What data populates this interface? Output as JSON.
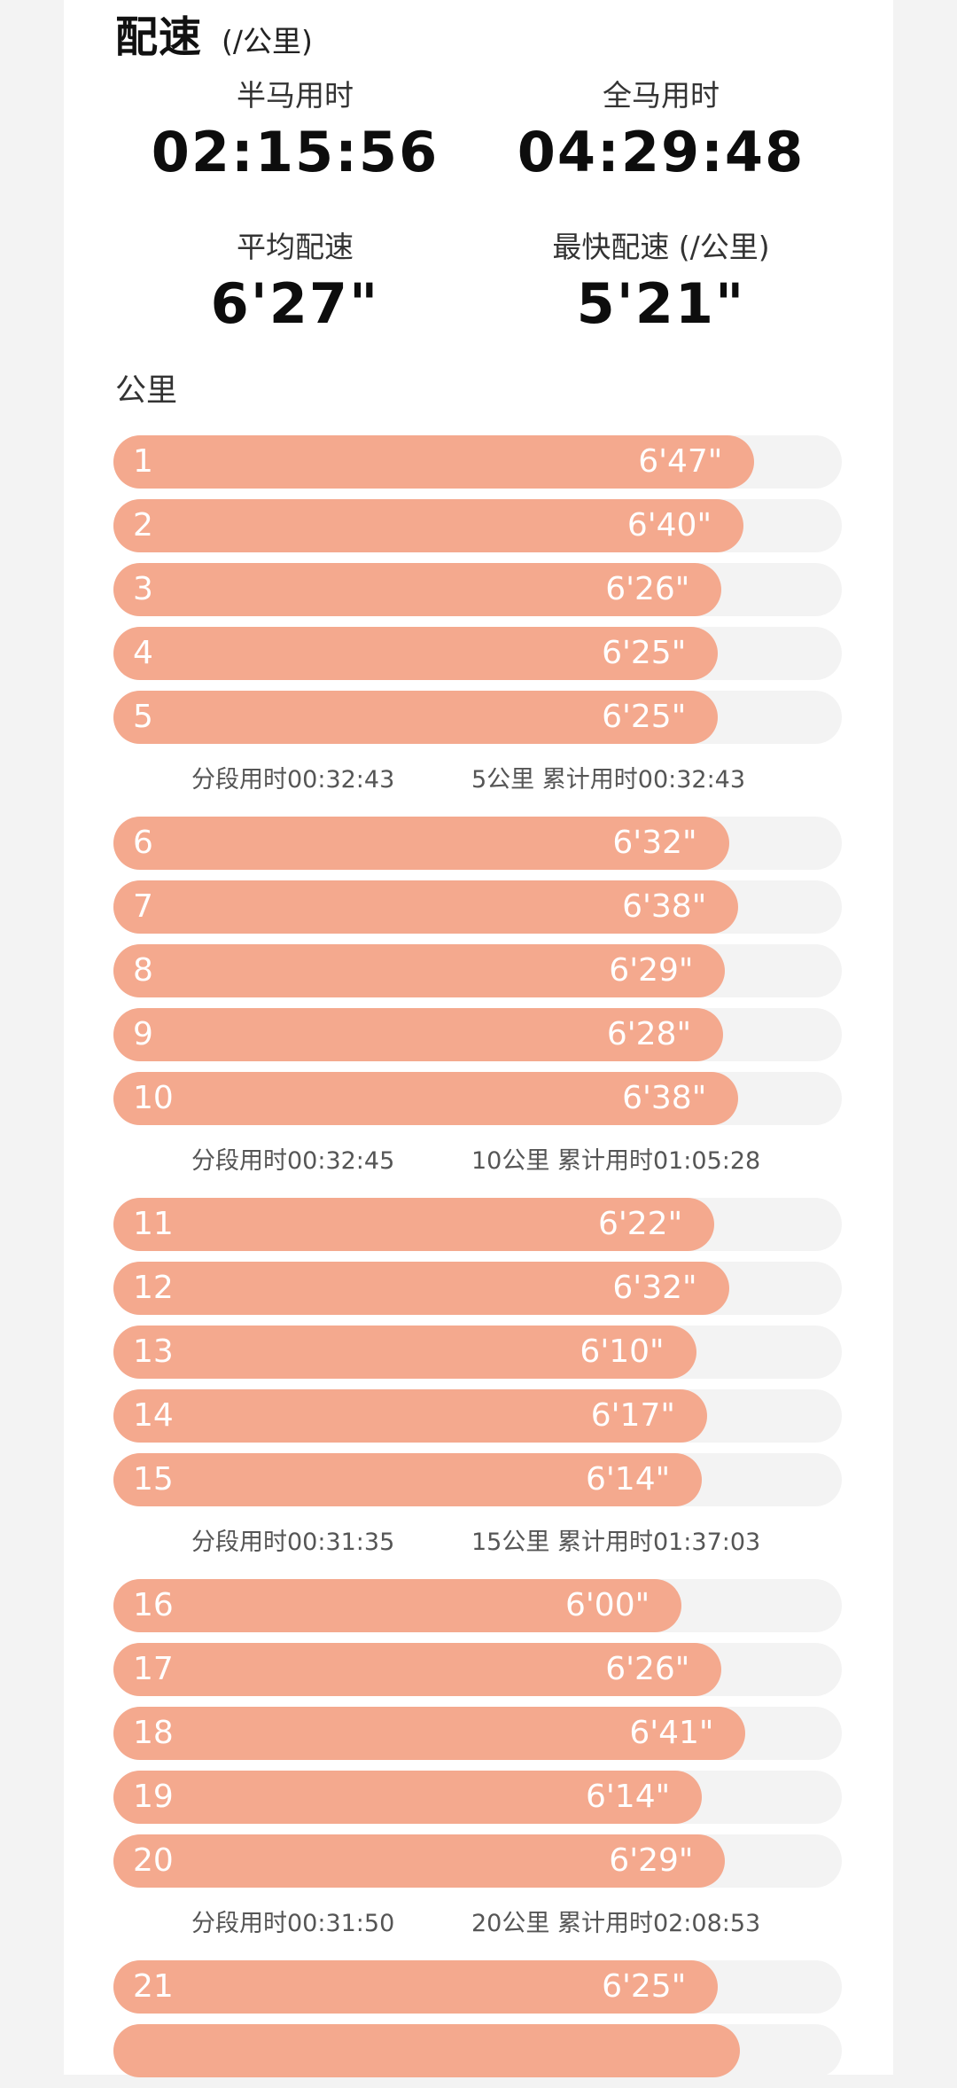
{
  "header": {
    "title": "配速",
    "unit": "(/公里)"
  },
  "stats": {
    "half_marathon_label": "半马用时",
    "half_marathon_value": "02:15:56",
    "full_marathon_label": "全马用时",
    "full_marathon_value": "04:29:48",
    "avg_pace_label": "平均配速",
    "avg_pace_value": "6'27\"",
    "fastest_pace_label": "最快配速 (/公里)",
    "fastest_pace_value": "5'21\""
  },
  "km_heading": "公里",
  "colors": {
    "bar_fill": "#f4a98e",
    "track": "#f3f3f3",
    "bar_text": "#ffffff"
  },
  "groups": [
    {
      "splits": [
        {
          "km": "1",
          "pace": "6'47\"",
          "fill": 0.88
        },
        {
          "km": "2",
          "pace": "6'40\"",
          "fill": 0.865
        },
        {
          "km": "3",
          "pace": "6'26\"",
          "fill": 0.835
        },
        {
          "km": "4",
          "pace": "6'25\"",
          "fill": 0.83
        },
        {
          "km": "5",
          "pace": "6'25\"",
          "fill": 0.83
        }
      ],
      "summary": {
        "segment": "分段用时00:32:43",
        "cumulative": "5公里 累计用时00:32:43"
      }
    },
    {
      "splits": [
        {
          "km": "6",
          "pace": "6'32\"",
          "fill": 0.845
        },
        {
          "km": "7",
          "pace": "6'38\"",
          "fill": 0.858
        },
        {
          "km": "8",
          "pace": "6'29\"",
          "fill": 0.84
        },
        {
          "km": "9",
          "pace": "6'28\"",
          "fill": 0.837
        },
        {
          "km": "10",
          "pace": "6'38\"",
          "fill": 0.858
        }
      ],
      "summary": {
        "segment": "分段用时00:32:45",
        "cumulative": "10公里 累计用时01:05:28"
      }
    },
    {
      "splits": [
        {
          "km": "11",
          "pace": "6'22\"",
          "fill": 0.825
        },
        {
          "km": "12",
          "pace": "6'32\"",
          "fill": 0.845
        },
        {
          "km": "13",
          "pace": "6'10\"",
          "fill": 0.8
        },
        {
          "km": "14",
          "pace": "6'17\"",
          "fill": 0.815
        },
        {
          "km": "15",
          "pace": "6'14\"",
          "fill": 0.808
        }
      ],
      "summary": {
        "segment": "分段用时00:31:35",
        "cumulative": "15公里 累计用时01:37:03"
      }
    },
    {
      "splits": [
        {
          "km": "16",
          "pace": "6'00\"",
          "fill": 0.78
        },
        {
          "km": "17",
          "pace": "6'26\"",
          "fill": 0.835
        },
        {
          "km": "18",
          "pace": "6'41\"",
          "fill": 0.868
        },
        {
          "km": "19",
          "pace": "6'14\"",
          "fill": 0.808
        },
        {
          "km": "20",
          "pace": "6'29\"",
          "fill": 0.84
        }
      ],
      "summary": {
        "segment": "分段用时00:31:50",
        "cumulative": "20公里 累计用时02:08:53"
      }
    },
    {
      "splits": [
        {
          "km": "21",
          "pace": "6'25\"",
          "fill": 0.83
        },
        {
          "km": "",
          "pace": "",
          "fill": 0.86
        }
      ]
    }
  ]
}
